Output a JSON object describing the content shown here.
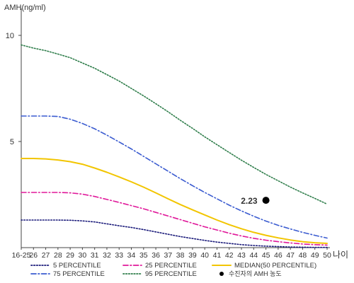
{
  "chart_data": {
    "type": "line",
    "title": "",
    "ylabel": "AMH(ng/ml)",
    "xlabel": "나이",
    "x_ticks": [
      "16-25",
      "26",
      "27",
      "28",
      "29",
      "30",
      "31",
      "32",
      "33",
      "34",
      "35",
      "36",
      "37",
      "38",
      "39",
      "40",
      "41",
      "42",
      "43",
      "44",
      "45",
      "46",
      "47",
      "48",
      "49",
      "50"
    ],
    "y_ticks": [
      5,
      10
    ],
    "ylim": [
      0,
      11
    ],
    "xlim": [
      25,
      50
    ],
    "grid": false,
    "legend_position": "bottom",
    "series": [
      {
        "name": "5 PERCENTILE",
        "color": "#1a1a7a",
        "style": "dotted",
        "x": [
          25,
          26,
          27,
          28,
          29,
          30,
          31,
          32,
          33,
          34,
          35,
          36,
          37,
          38,
          39,
          40,
          41,
          42,
          43,
          44,
          45,
          46,
          47,
          48,
          49,
          50
        ],
        "values": [
          1.3,
          1.3,
          1.3,
          1.3,
          1.29,
          1.26,
          1.21,
          1.12,
          1.03,
          0.95,
          0.85,
          0.74,
          0.63,
          0.52,
          0.43,
          0.34,
          0.26,
          0.2,
          0.14,
          0.1,
          0.07,
          0.05,
          0.03,
          0.02,
          0.01,
          0.01
        ]
      },
      {
        "name": "25 PERCENTILE",
        "color": "#e0189a",
        "style": "dashdot",
        "x": [
          25,
          26,
          27,
          28,
          29,
          30,
          31,
          32,
          33,
          34,
          35,
          36,
          37,
          38,
          39,
          40,
          41,
          42,
          43,
          44,
          45,
          46,
          47,
          48,
          49,
          50
        ],
        "values": [
          2.6,
          2.6,
          2.6,
          2.6,
          2.58,
          2.52,
          2.41,
          2.27,
          2.13,
          1.98,
          1.83,
          1.66,
          1.49,
          1.32,
          1.15,
          0.98,
          0.83,
          0.68,
          0.55,
          0.44,
          0.35,
          0.28,
          0.22,
          0.17,
          0.14,
          0.12
        ]
      },
      {
        "name": "MEDIAN(50 PERCENTILE)",
        "color": "#f2c500",
        "style": "solid",
        "x": [
          25,
          26,
          27,
          28,
          29,
          30,
          31,
          32,
          33,
          34,
          35,
          36,
          37,
          38,
          39,
          40,
          41,
          42,
          43,
          44,
          45,
          46,
          47,
          48,
          49,
          50
        ],
        "values": [
          4.2,
          4.2,
          4.18,
          4.13,
          4.05,
          3.93,
          3.75,
          3.55,
          3.33,
          3.1,
          2.85,
          2.58,
          2.3,
          2.03,
          1.78,
          1.54,
          1.3,
          1.08,
          0.89,
          0.72,
          0.58,
          0.46,
          0.36,
          0.28,
          0.23,
          0.2
        ]
      },
      {
        "name": "75 PERCENTILE",
        "color": "#3a5bd0",
        "style": "dashdot",
        "x": [
          25,
          26,
          27,
          28,
          29,
          30,
          31,
          32,
          33,
          34,
          35,
          36,
          37,
          38,
          39,
          40,
          41,
          42,
          43,
          44,
          45,
          46,
          47,
          48,
          49,
          50
        ],
        "values": [
          6.2,
          6.2,
          6.2,
          6.18,
          6.05,
          5.85,
          5.6,
          5.3,
          4.98,
          4.65,
          4.3,
          3.95,
          3.6,
          3.25,
          2.92,
          2.6,
          2.3,
          2.0,
          1.73,
          1.48,
          1.25,
          1.05,
          0.88,
          0.72,
          0.58,
          0.45
        ]
      },
      {
        "name": "95 PERCENTILE",
        "color": "#2e7d4a",
        "style": "dotted",
        "x": [
          25,
          26,
          27,
          28,
          29,
          30,
          31,
          32,
          33,
          34,
          35,
          36,
          37,
          38,
          39,
          40,
          41,
          42,
          43,
          44,
          45,
          46,
          47,
          48,
          49,
          50
        ],
        "values": [
          9.55,
          9.4,
          9.28,
          9.12,
          8.95,
          8.7,
          8.45,
          8.15,
          7.85,
          7.5,
          7.15,
          6.78,
          6.4,
          6.0,
          5.62,
          5.22,
          4.85,
          4.48,
          4.12,
          3.78,
          3.45,
          3.15,
          2.85,
          2.58,
          2.32,
          2.05
        ]
      }
    ],
    "point": {
      "name": "수진자의 AMH 농도",
      "x": 45,
      "y": 2.23,
      "label": "2.23",
      "color": "#000000"
    },
    "legend_rows": [
      [
        "5 PERCENTILE",
        "25 PERCENTILE",
        "MEDIAN(50 PERCENTILE)"
      ],
      [
        "75 PERCENTILE",
        "95 PERCENTILE",
        "수진자의 AMH 농도"
      ]
    ]
  }
}
